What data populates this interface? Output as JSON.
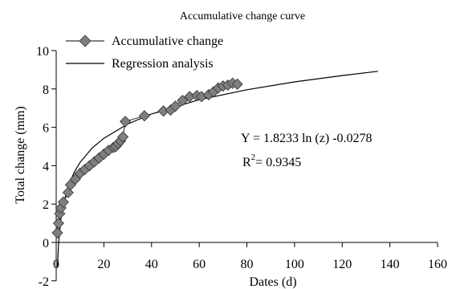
{
  "chart_data": {
    "type": "scatter",
    "title": "Accumulative change curve",
    "xlabel": "Dates (d)",
    "ylabel": "Total change (mm)",
    "xlim": [
      0,
      160
    ],
    "ylim": [
      -2,
      10
    ],
    "x_ticks": [
      0,
      20,
      40,
      60,
      80,
      100,
      120,
      140,
      160
    ],
    "y_ticks": [
      -2,
      0,
      2,
      4,
      6,
      8,
      10
    ],
    "grid": false,
    "legend_position": "top-left",
    "series": [
      {
        "name": "Accumulative change",
        "kind": "scatter-line",
        "marker": "diamond",
        "color": "#7f7f7f",
        "x": [
          0.5,
          1,
          1.5,
          2,
          3,
          5,
          6,
          8,
          10,
          12,
          14,
          16,
          18,
          20,
          22,
          24,
          25,
          26,
          27,
          28,
          29,
          37,
          45,
          48,
          50,
          53,
          56,
          59,
          61,
          64,
          66,
          68,
          70,
          72,
          74,
          76
        ],
        "y": [
          0.5,
          1.0,
          1.5,
          1.8,
          2.1,
          2.6,
          3.0,
          3.3,
          3.6,
          3.8,
          4.0,
          4.2,
          4.4,
          4.6,
          4.8,
          4.95,
          5.0,
          5.15,
          5.3,
          5.5,
          6.3,
          6.6,
          6.85,
          6.9,
          7.1,
          7.4,
          7.6,
          7.65,
          7.6,
          7.7,
          7.85,
          8.05,
          8.15,
          8.2,
          8.3,
          8.25
        ]
      },
      {
        "name": "Regression analysis",
        "kind": "line",
        "color": "#000000",
        "x": [
          0.5,
          1,
          2,
          3,
          5,
          7.5,
          10,
          15,
          20,
          30,
          40,
          60,
          80,
          100,
          120,
          135
        ],
        "y": [
          -1.29,
          -0.03,
          1.24,
          1.98,
          2.91,
          3.65,
          4.17,
          4.91,
          5.43,
          6.17,
          6.7,
          7.44,
          7.96,
          8.37,
          8.7,
          8.92
        ]
      }
    ],
    "annotations": {
      "equation": "Y = 1.8233 ln (z) -0.0278",
      "r2_prefix": "R",
      "r2_sup": "2",
      "r2_value": "= 0.9345"
    }
  }
}
